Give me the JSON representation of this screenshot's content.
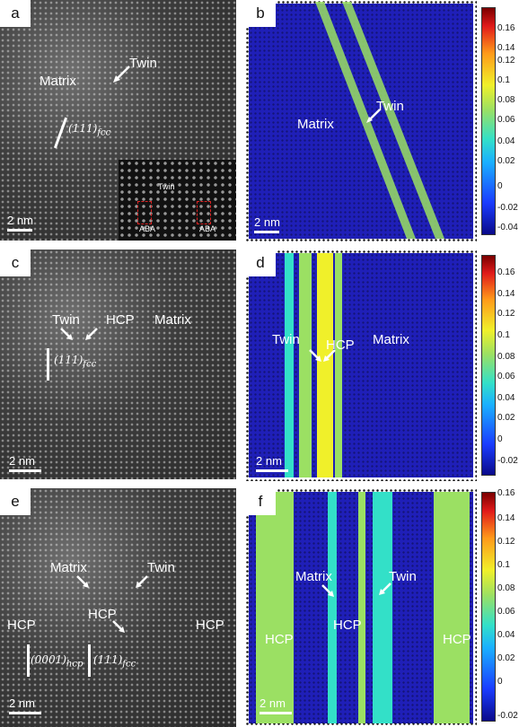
{
  "panels": {
    "a": {
      "letter": "a",
      "matrix": "Matrix",
      "twin": "Twin",
      "plane": "(111)",
      "plane_sub": "fcc",
      "scale": "2 nm",
      "inset_twin": "Twin",
      "inset_aba1": "ABA",
      "inset_aba2": "ABA"
    },
    "b": {
      "letter": "b",
      "matrix": "Matrix",
      "twin": "Twin",
      "scale": "2 nm"
    },
    "c": {
      "letter": "c",
      "twin": "Twin",
      "hcp": "HCP",
      "matrix": "Matrix",
      "plane": "(111)",
      "plane_sub": "fcc",
      "scale": "2 nm"
    },
    "d": {
      "letter": "d",
      "twin": "Twin",
      "hcp": "HCP",
      "matrix": "Matrix",
      "scale": "2 nm"
    },
    "e": {
      "letter": "e",
      "matrix": "Matrix",
      "twin": "Twin",
      "hcp_left": "HCP",
      "hcp_mid": "HCP",
      "hcp_right": "HCP",
      "plane1": "(0001)",
      "plane1_sub": "hcp",
      "plane2": "(111)",
      "plane2_sub": "fcc",
      "scale": "2 nm"
    },
    "f": {
      "letter": "f",
      "matrix": "Matrix",
      "twin": "Twin",
      "hcp_left": "HCP",
      "hcp_mid": "HCP",
      "hcp_right": "HCP",
      "scale": "2 nm"
    }
  },
  "colorbars": {
    "b": [
      "0.16",
      "0.14",
      "0.12",
      "0.1",
      "0.08",
      "0.06",
      "0.04",
      "0.02",
      "0",
      "-0.02",
      "-0.04"
    ],
    "d": [
      "0.16",
      "0.14",
      "0.12",
      "0.1",
      "0.08",
      "0.06",
      "0.04",
      "0.02",
      "0",
      "-0.02"
    ],
    "f": [
      "0.16",
      "0.14",
      "0.12",
      "0.1",
      "0.08",
      "0.06",
      "0.04",
      "0.02",
      "0",
      "-0.02"
    ]
  },
  "colors": {
    "matrix_blue": "#1f1fb8",
    "twin_band": "#9be063",
    "hcp_band": "#f0f02a"
  }
}
